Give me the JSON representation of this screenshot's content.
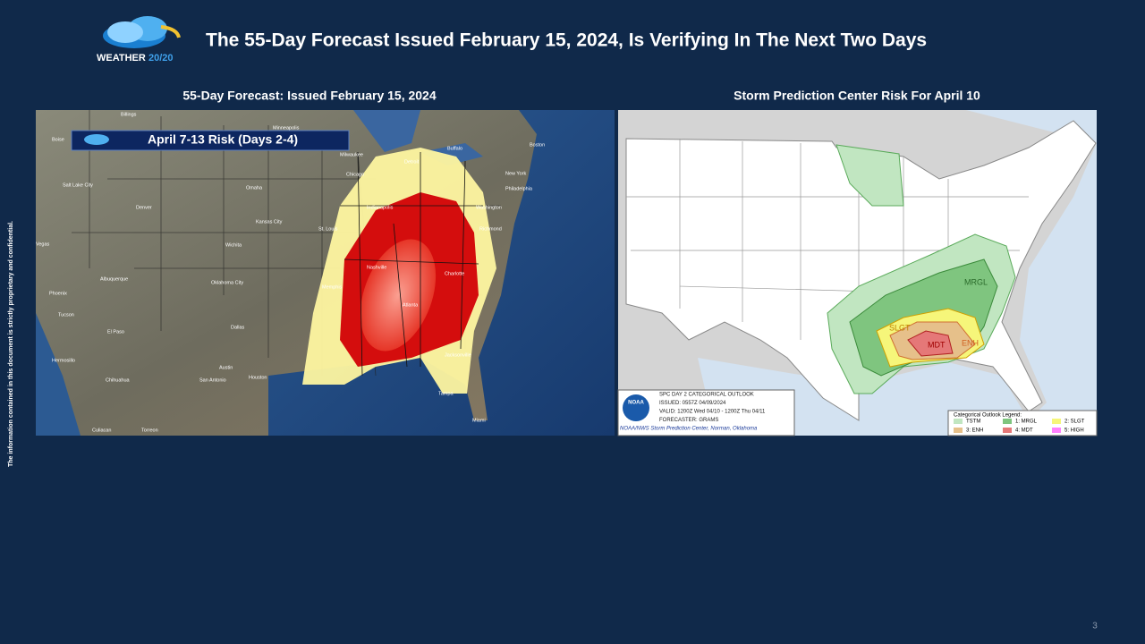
{
  "header": {
    "title": "The 55-Day Forecast Issued February 15, 2024, Is Verifying In The Next Two Days",
    "logo_word": "WEATHER",
    "logo_number": "20/20"
  },
  "left_panel": {
    "title": "55-Day Forecast:  Issued February 15, 2024",
    "banner": "April 7-13 Risk (Days 2-4)",
    "cities": [
      "Billings",
      "Minneapolis",
      "Boise",
      "Buffalo",
      "Boston",
      "Milwaukee",
      "Detroit",
      "Chicago",
      "New York",
      "Salt Lake City",
      "Omaha",
      "Philadelphia",
      "Denver",
      "Indianapolis",
      "Washington",
      "Kansas City",
      "St. Louis",
      "Richmond",
      "Vegas",
      "Wichita",
      "Nashville",
      "Charlotte",
      "Albuquerque",
      "Oklahoma City",
      "Phoenix",
      "Memphis",
      "Atlanta",
      "Tucson",
      "Dallas",
      "El Paso",
      "Jacksonville",
      "Hermosillo",
      "Austin",
      "Houston",
      "Chihuahua",
      "San Antonio",
      "Tampa",
      "Miami",
      "Culiacan",
      "Torreon"
    ]
  },
  "right_panel": {
    "title": "Storm Prediction Center Risk For April 10",
    "risk_labels": [
      "MRGL",
      "SLGT",
      "MDT",
      "ENH"
    ],
    "info": {
      "agency": "NOAA",
      "lines": [
        "SPC DAY 2 CATEGORICAL OUTLOOK",
        "ISSUED: 0557Z 04/09/2024",
        "VALID: 1200Z Wed 04/10 - 1200Z Thu 04/11",
        "FORECASTER: GRAMS",
        "NOAA/NWS Storm Prediction Center, Norman, Oklahoma"
      ]
    },
    "legend": {
      "title": "Categorical Outlook Legend:",
      "items": [
        "TSTM",
        "1: MRGL",
        "2: SLGT",
        "3: ENH",
        "4: MDT",
        "5: HIGH"
      ]
    }
  },
  "side_note": "The information contained in this document is strictly proprietary and confidential.",
  "page_number": "3"
}
